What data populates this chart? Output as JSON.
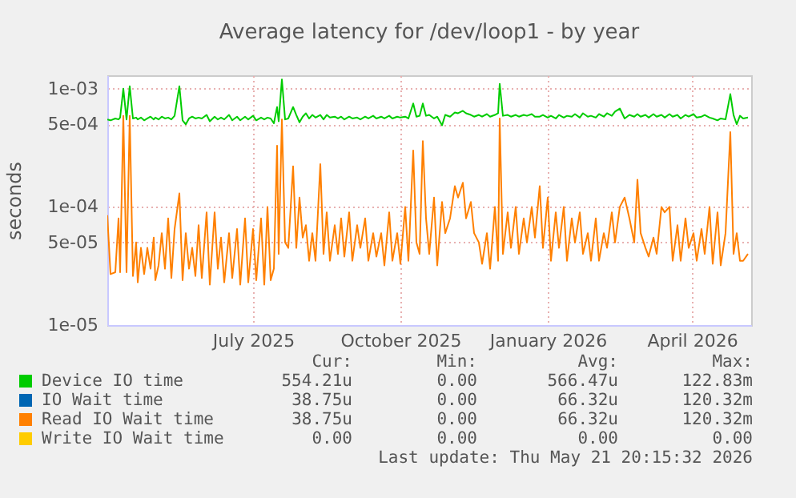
{
  "chart_data": {
    "type": "line",
    "title": "Average latency for /dev/loop1 - by year",
    "ylabel": "seconds",
    "log": "y",
    "grid": true,
    "legend": "bottom",
    "xlim": [
      "2025-04-16",
      "2026-05-23"
    ],
    "xticks": [
      {
        "value": "2025-07-16",
        "label": "July 2025"
      },
      {
        "value": "2025-10-16",
        "label": "October 2025"
      },
      {
        "value": "2026-01-16",
        "label": "January 2026"
      },
      {
        "value": "2026-04-16",
        "label": "April 2026"
      }
    ],
    "ylim": [
      1e-05,
      0.0013
    ],
    "yticks": [
      {
        "value": 1e-05,
        "label": "1e-05"
      },
      {
        "value": 5e-05,
        "label": "5e-05"
      },
      {
        "value": 0.0001,
        "label": "1e-04"
      },
      {
        "value": 0.0005,
        "label": "5e-04"
      },
      {
        "value": 0.001,
        "label": "1e-03"
      }
    ],
    "x": [
      "2025-04-16",
      "2025-04-18",
      "2025-04-21",
      "2025-04-23",
      "2025-04-24",
      "2025-04-26",
      "2025-04-28",
      "2025-04-30",
      "2025-05-02",
      "2025-05-04",
      "2025-05-05",
      "2025-05-07",
      "2025-05-09",
      "2025-05-11",
      "2025-05-13",
      "2025-05-15",
      "2025-05-16",
      "2025-05-18",
      "2025-05-20",
      "2025-05-22",
      "2025-05-24",
      "2025-05-26",
      "2025-05-28",
      "2025-05-31",
      "2025-06-02",
      "2025-06-04",
      "2025-06-06",
      "2025-06-08",
      "2025-06-10",
      "2025-06-12",
      "2025-06-14",
      "2025-06-17",
      "2025-06-19",
      "2025-06-22",
      "2025-06-24",
      "2025-06-26",
      "2025-06-28",
      "2025-07-01",
      "2025-07-03",
      "2025-07-06",
      "2025-07-08",
      "2025-07-11",
      "2025-07-13",
      "2025-07-16",
      "2025-07-18",
      "2025-07-21",
      "2025-07-23",
      "2025-07-25",
      "2025-07-27",
      "2025-07-29",
      "2025-07-31",
      "2025-08-01",
      "2025-08-03",
      "2025-08-05",
      "2025-08-07",
      "2025-08-10",
      "2025-08-12",
      "2025-08-14",
      "2025-08-16",
      "2025-08-18",
      "2025-08-20",
      "2025-08-22",
      "2025-08-24",
      "2025-08-27",
      "2025-08-29",
      "2025-08-31",
      "2025-09-02",
      "2025-09-05",
      "2025-09-07",
      "2025-09-09",
      "2025-09-11",
      "2025-09-14",
      "2025-09-16",
      "2025-09-19",
      "2025-09-21",
      "2025-09-24",
      "2025-09-26",
      "2025-09-29",
      "2025-10-01",
      "2025-10-04",
      "2025-10-06",
      "2025-10-09",
      "2025-10-11",
      "2025-10-14",
      "2025-10-16",
      "2025-10-19",
      "2025-10-21",
      "2025-10-24",
      "2025-10-26",
      "2025-10-28",
      "2025-10-30",
      "2025-11-01",
      "2025-11-03",
      "2025-11-06",
      "2025-11-08",
      "2025-11-11",
      "2025-11-13",
      "2025-11-16",
      "2025-11-19",
      "2025-11-21",
      "2025-11-24",
      "2025-11-26",
      "2025-11-29",
      "2025-12-01",
      "2025-12-04",
      "2025-12-06",
      "2025-12-09",
      "2025-12-11",
      "2025-12-14",
      "2025-12-16",
      "2025-12-17",
      "2025-12-19",
      "2025-12-22",
      "2025-12-24",
      "2025-12-27",
      "2025-12-29",
      "2026-01-01",
      "2026-01-03",
      "2026-01-06",
      "2026-01-08",
      "2026-01-11",
      "2026-01-13",
      "2026-01-16",
      "2026-01-18",
      "2026-01-21",
      "2026-01-23",
      "2026-01-26",
      "2026-01-28",
      "2026-01-31",
      "2026-02-02",
      "2026-02-05",
      "2026-02-07",
      "2026-02-10",
      "2026-02-12",
      "2026-02-15",
      "2026-02-17",
      "2026-02-20",
      "2026-02-22",
      "2026-02-25",
      "2026-02-27",
      "2026-03-02",
      "2026-03-05",
      "2026-03-08",
      "2026-03-11",
      "2026-03-13",
      "2026-03-15",
      "2026-03-18",
      "2026-03-20",
      "2026-03-23",
      "2026-03-25",
      "2026-03-28",
      "2026-03-30",
      "2026-04-02",
      "2026-04-04",
      "2026-04-07",
      "2026-04-09",
      "2026-04-12",
      "2026-04-14",
      "2026-04-17",
      "2026-04-19",
      "2026-04-22",
      "2026-04-24",
      "2026-04-27",
      "2026-04-29",
      "2026-05-02",
      "2026-05-04",
      "2026-05-07",
      "2026-05-10",
      "2026-05-12",
      "2026-05-14",
      "2026-05-16",
      "2026-05-18",
      "2026-05-21"
    ],
    "series": [
      {
        "name": "Device IO time",
        "color": "#00cc00",
        "values": [
          0.00055,
          0.00054,
          0.00056,
          0.00055,
          0.00057,
          0.001,
          0.00055,
          0.00105,
          0.00056,
          0.00057,
          0.00055,
          0.00057,
          0.00054,
          0.00056,
          0.00058,
          0.00055,
          0.00057,
          0.00055,
          0.00058,
          0.00056,
          0.00057,
          0.00055,
          0.00059,
          0.00105,
          0.00054,
          0.0005,
          0.00056,
          0.00058,
          0.00056,
          0.00057,
          0.00056,
          0.0006,
          0.00053,
          0.00058,
          0.00055,
          0.00057,
          0.00055,
          0.0006,
          0.00054,
          0.00058,
          0.00054,
          0.00058,
          0.00055,
          0.00059,
          0.00054,
          0.00057,
          0.00055,
          0.00057,
          0.00056,
          0.00051,
          0.0007,
          0.00053,
          0.0012,
          0.00055,
          0.00056,
          0.0007,
          0.0006,
          0.00052,
          0.00058,
          0.00062,
          0.00056,
          0.0006,
          0.00057,
          0.0006,
          0.00055,
          0.0006,
          0.00057,
          0.00058,
          0.00056,
          0.00058,
          0.00055,
          0.00058,
          0.00056,
          0.00057,
          0.00055,
          0.00058,
          0.00056,
          0.00059,
          0.00056,
          0.00058,
          0.00056,
          0.00059,
          0.00056,
          0.00058,
          0.00057,
          0.00058,
          0.00056,
          0.00075,
          0.00058,
          0.00059,
          0.00075,
          0.00059,
          0.0006,
          0.00056,
          0.00058,
          0.00049,
          0.0006,
          0.00058,
          0.00063,
          0.00062,
          0.00065,
          0.00062,
          0.0006,
          0.00058,
          0.0006,
          0.00058,
          0.00061,
          0.00058,
          0.0006,
          0.00062,
          0.0011,
          0.00059,
          0.0006,
          0.00058,
          0.0006,
          0.00058,
          0.0006,
          0.00059,
          0.00061,
          0.00058,
          0.00058,
          0.0006,
          0.00057,
          0.00059,
          0.00056,
          0.0006,
          0.00057,
          0.00059,
          0.00058,
          0.00061,
          0.00057,
          0.00062,
          0.00058,
          0.00059,
          0.00057,
          0.00061,
          0.00058,
          0.00062,
          0.00059,
          0.00064,
          0.00068,
          0.00056,
          0.0006,
          0.00058,
          0.00061,
          0.00058,
          0.0006,
          0.00057,
          0.00061,
          0.00058,
          0.0006,
          0.00057,
          0.00061,
          0.00058,
          0.0006,
          0.00056,
          0.0006,
          0.00058,
          0.00061,
          0.00057,
          0.00058,
          0.0006,
          0.00057,
          0.00056,
          0.00054,
          0.00056,
          0.00055,
          0.0009,
          0.0006,
          0.0005,
          0.00059,
          0.00056,
          0.00057
        ]
      },
      {
        "name": "IO Wait time",
        "color": "#0066b3",
        "values": [
          null,
          null,
          null,
          null,
          null,
          null,
          null,
          null,
          null,
          null,
          null,
          null,
          null,
          null,
          null,
          null,
          null,
          null,
          null,
          null,
          null,
          null,
          null,
          null,
          null,
          null,
          null,
          null,
          null,
          null,
          null,
          null,
          null,
          null,
          null,
          null,
          null,
          null,
          null,
          null,
          null,
          null,
          null,
          null,
          null,
          null,
          null,
          null,
          null,
          null,
          null,
          null,
          null,
          null,
          null,
          null,
          null,
          null,
          null,
          null,
          null,
          null,
          null,
          null,
          null,
          null,
          null,
          null,
          null,
          null,
          null,
          null,
          null,
          null,
          null,
          null,
          null,
          null,
          null,
          null,
          null,
          null,
          null,
          null,
          null,
          null,
          null,
          null,
          null,
          null,
          null,
          null,
          null,
          null,
          null,
          null,
          null,
          null,
          null,
          null,
          null,
          null,
          null,
          null,
          null,
          null,
          null,
          null,
          null,
          null,
          null,
          null,
          null,
          null,
          null,
          null,
          null,
          null,
          null,
          null,
          null,
          null,
          null,
          null,
          null,
          null,
          null,
          null,
          null,
          null,
          null,
          null,
          null,
          null,
          null,
          null,
          null,
          null,
          null,
          null,
          null,
          null,
          null,
          null,
          null,
          null,
          null,
          null,
          null,
          null,
          null,
          null,
          null,
          null,
          null,
          null,
          null,
          null,
          null,
          null,
          null,
          null,
          null,
          null,
          null,
          null,
          null,
          null,
          null,
          null,
          null,
          null,
          null
        ]
      },
      {
        "name": "Read IO Wait time",
        "color": "#ff8000",
        "values": [
          8.5e-05,
          2.7e-05,
          2.8e-05,
          8e-05,
          2.8e-05,
          0.00059,
          2.8e-05,
          0.00059,
          2.6e-05,
          5e-05,
          2.3e-05,
          4.5e-05,
          2.7e-05,
          4.5e-05,
          3e-05,
          5.5e-05,
          2.4e-05,
          3.2e-05,
          6e-05,
          3e-05,
          8e-05,
          2.5e-05,
          6.5e-05,
          0.00013,
          2.4e-05,
          6e-05,
          3e-05,
          4.5e-05,
          2.6e-05,
          7e-05,
          2.5e-05,
          9e-05,
          2.2e-05,
          9e-05,
          3e-05,
          5.5e-05,
          2.3e-05,
          6e-05,
          2.5e-05,
          6.5e-05,
          2.2e-05,
          8e-05,
          2.3e-05,
          6.5e-05,
          2.4e-05,
          8e-05,
          2.2e-05,
          0.0001,
          2.4e-05,
          3e-05,
          0.00033,
          4e-05,
          0.00055,
          5e-05,
          4.5e-05,
          0.00022,
          4.5e-05,
          0.00012,
          5.5e-05,
          7e-05,
          3.5e-05,
          6e-05,
          3.5e-05,
          0.00023,
          4e-05,
          9e-05,
          3.5e-05,
          7e-05,
          4e-05,
          8e-05,
          3.8e-05,
          9e-05,
          3.5e-05,
          7e-05,
          4.5e-05,
          8e-05,
          3.5e-05,
          6e-05,
          3.8e-05,
          6e-05,
          3.2e-05,
          9e-05,
          3.5e-05,
          6e-05,
          3.3e-05,
          0.0001,
          3.5e-05,
          0.0003,
          5e-05,
          4e-05,
          0.00036,
          8e-05,
          4e-05,
          0.00012,
          3.2e-05,
          0.00011,
          6e-05,
          8e-05,
          0.00015,
          0.00012,
          0.00016,
          8e-05,
          0.00011,
          6e-05,
          5e-05,
          3.3e-05,
          6e-05,
          3e-05,
          0.0001,
          3.5e-05,
          0.00056,
          4e-05,
          9e-05,
          4.5e-05,
          0.0001,
          4e-05,
          8e-05,
          5e-05,
          0.0001,
          5.5e-05,
          0.00015,
          4.5e-05,
          0.00012,
          3.5e-05,
          9e-05,
          4.5e-05,
          0.0001,
          3.5e-05,
          8e-05,
          5e-05,
          9e-05,
          4e-05,
          6e-05,
          3.5e-05,
          8e-05,
          3.5e-05,
          6e-05,
          4.5e-05,
          9e-05,
          5e-05,
          0.0001,
          0.00012,
          8e-05,
          5e-05,
          0.00017,
          6e-05,
          4.5e-05,
          3.8e-05,
          5.5e-05,
          4e-05,
          0.0001,
          9e-05,
          0.0001,
          3.5e-05,
          7e-05,
          3.5e-05,
          8e-05,
          4.5e-05,
          6e-05,
          3.5e-05,
          6.5e-05,
          4e-05,
          0.0001,
          3.3e-05,
          9e-05,
          3.2e-05,
          6e-05,
          0.00043,
          4e-05,
          6e-05,
          3.5e-05,
          3.5e-05,
          4e-05
        ]
      },
      {
        "name": "Write IO Wait time",
        "color": "#ffcc00",
        "values": [
          null,
          null,
          null,
          null,
          null,
          null,
          null,
          null,
          null,
          null,
          null,
          null,
          null,
          null,
          null,
          null,
          null,
          null,
          null,
          null,
          null,
          null,
          null,
          null,
          null,
          null,
          null,
          null,
          null,
          null,
          null,
          null,
          null,
          null,
          null,
          null,
          null,
          null,
          null,
          null,
          null,
          null,
          null,
          null,
          null,
          null,
          null,
          null,
          null,
          null,
          null,
          null,
          null,
          null,
          null,
          null,
          null,
          null,
          null,
          null,
          null,
          null,
          null,
          null,
          null,
          null,
          null,
          null,
          null,
          null,
          null,
          null,
          null,
          null,
          null,
          null,
          null,
          null,
          null,
          null,
          null,
          null,
          null,
          null,
          null,
          null,
          null,
          null,
          null,
          null,
          null,
          null,
          null,
          null,
          null,
          null,
          null,
          null,
          null,
          null,
          null,
          null,
          null,
          null,
          null,
          null,
          null,
          null,
          null,
          null,
          null,
          null,
          null,
          null,
          null,
          null,
          null,
          null,
          null,
          null,
          null,
          null,
          null,
          null,
          null,
          null,
          null,
          null,
          null,
          null,
          null,
          null,
          null,
          null,
          null,
          null,
          null,
          null,
          null,
          null,
          null,
          null,
          null,
          null,
          null,
          null,
          null,
          null,
          null,
          null,
          null,
          null,
          null,
          null,
          null,
          null,
          null,
          null,
          null,
          null,
          null,
          null,
          null,
          null,
          null,
          null,
          null,
          null,
          null,
          null,
          null,
          null,
          null
        ]
      }
    ],
    "annotations": [
      "Cur:",
      "Min:",
      "Avg:",
      "Max:",
      "554.21u",
      "0.00",
      "566.47u",
      "122.83m",
      "38.75u",
      "0.00",
      "66.32u",
      "120.32m",
      "38.75u",
      "0.00",
      "66.32u",
      "120.32m",
      "0.00",
      "0.00",
      "0.00",
      "0.00",
      "Last update: Thu May 21 20:15:32 2026"
    ]
  }
}
